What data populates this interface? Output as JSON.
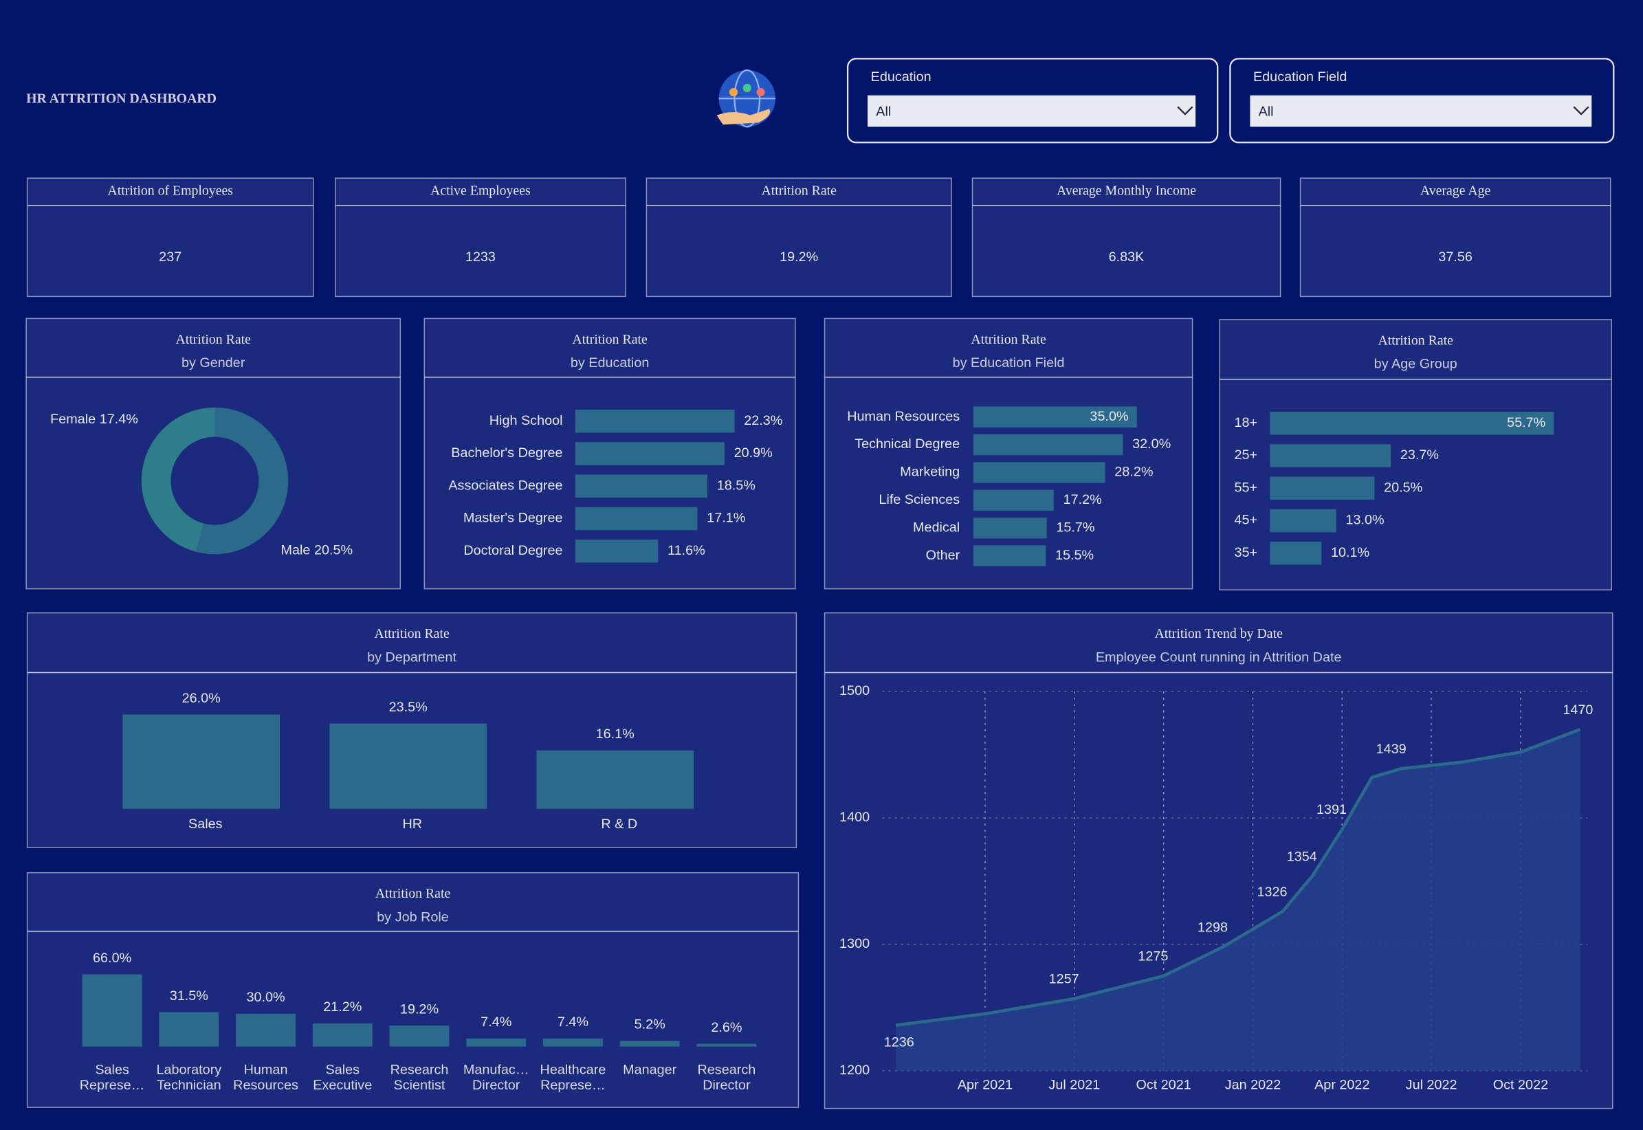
{
  "header": {
    "title": "HR ATTRITION DASHBOARD"
  },
  "filters": [
    {
      "label": "Education",
      "value": "All"
    },
    {
      "label": "Education Field",
      "value": "All"
    }
  ],
  "kpis": [
    {
      "label": "Attrition of Employees",
      "value": "237"
    },
    {
      "label": "Active Employees",
      "value": "1233"
    },
    {
      "label": "Attrition Rate",
      "value": "19.2%"
    },
    {
      "label": "Average Monthly Income",
      "value": "6.83K"
    },
    {
      "label": "Average Age",
      "value": "37.56"
    }
  ],
  "chart_data": [
    {
      "type": "pie",
      "title": "Attrition Rate",
      "subtitle": "by Gender",
      "categories": [
        "Female",
        "Male"
      ],
      "values": [
        17.4,
        20.5
      ],
      "value_labels": [
        "17.4%",
        "20.5%"
      ],
      "colors": [
        "#2d7d8a",
        "#2b6a8c"
      ]
    },
    {
      "type": "hbar",
      "title": "Attrition Rate",
      "subtitle": "by Education",
      "categories": [
        "High School",
        "Bachelor's Degree",
        "Associates Degree",
        "Master's Degree",
        "Doctoral Degree"
      ],
      "values": [
        22.3,
        20.9,
        18.5,
        17.1,
        11.6
      ],
      "value_labels": [
        "22.3%",
        "20.9%",
        "18.5%",
        "17.1%",
        "11.6%"
      ],
      "color": "#2b6a8c"
    },
    {
      "type": "hbar",
      "title": "Attrition Rate",
      "subtitle": "by Education Field",
      "categories": [
        "Human Resources",
        "Technical Degree",
        "Marketing",
        "Life Sciences",
        "Medical",
        "Other"
      ],
      "values": [
        35.0,
        32.0,
        28.2,
        17.2,
        15.7,
        15.5
      ],
      "value_labels": [
        "35.0%",
        "32.0%",
        "28.2%",
        "17.2%",
        "15.7%",
        "15.5%"
      ],
      "color": "#2b6a8c"
    },
    {
      "type": "hbar",
      "title": "Attrition Rate",
      "subtitle": "by Age Group",
      "categories": [
        "18+",
        "25+",
        "55+",
        "45+",
        "35+"
      ],
      "values": [
        55.7,
        23.7,
        20.5,
        13.0,
        10.1
      ],
      "value_labels": [
        "55.7%",
        "23.7%",
        "20.5%",
        "13.0%",
        "10.1%"
      ],
      "color": "#2b6a8c"
    },
    {
      "type": "bar",
      "title": "Attrition Rate",
      "subtitle": "by Department",
      "categories": [
        "Sales",
        "HR",
        "R & D"
      ],
      "values": [
        26.0,
        23.5,
        16.1
      ],
      "value_labels": [
        "26.0%",
        "23.5%",
        "16.1%"
      ],
      "color": "#2b6a8c"
    },
    {
      "type": "bar",
      "title": "Attrition Rate",
      "subtitle": "by Job Role",
      "categories": [
        "Sales Represe…",
        "Laboratory Technician",
        "Human Resources",
        "Sales Executive",
        "Research Scientist",
        "Manufac… Director",
        "Healthcare Represe…",
        "Manager",
        "Research Director"
      ],
      "values": [
        66.0,
        31.5,
        30.0,
        21.2,
        19.2,
        7.4,
        7.4,
        5.2,
        2.6
      ],
      "value_labels": [
        "66.0%",
        "31.5%",
        "30.0%",
        "21.2%",
        "19.2%",
        "7.4%",
        "7.4%",
        "5.2%",
        "2.6%"
      ],
      "color": "#2b6a8c"
    },
    {
      "type": "area",
      "title": "Attrition Trend by Date",
      "subtitle": "Employee Count running in Attrition Date",
      "x": [
        "Jan 2021",
        "Apr 2021",
        "Jul 2021",
        "Oct 2021",
        "Dec 2021",
        "Feb 2022",
        "Mar 2022",
        "Apr 2022",
        "May 2022",
        "Jun 2022",
        "Aug 2022",
        "Oct 2022",
        "Dec 2022"
      ],
      "values": [
        1236,
        1245,
        1257,
        1275,
        1298,
        1326,
        1354,
        1391,
        1432,
        1439,
        1444,
        1452,
        1470
      ],
      "value_labels": [
        "1236",
        null,
        "1257",
        "1275",
        "1298",
        "1326",
        "1354",
        "1391",
        null,
        "1439",
        null,
        null,
        "1470"
      ],
      "ylim": [
        1200,
        1500
      ],
      "yticks": [
        1200,
        1300,
        1400,
        1500
      ],
      "xticks": [
        "Apr 2021",
        "Jul 2021",
        "Oct 2021",
        "Jan 2022",
        "Apr 2022",
        "Jul 2022",
        "Oct 2022"
      ],
      "grid": true,
      "color": "#2b6a8c",
      "fill": "#24408c"
    }
  ]
}
